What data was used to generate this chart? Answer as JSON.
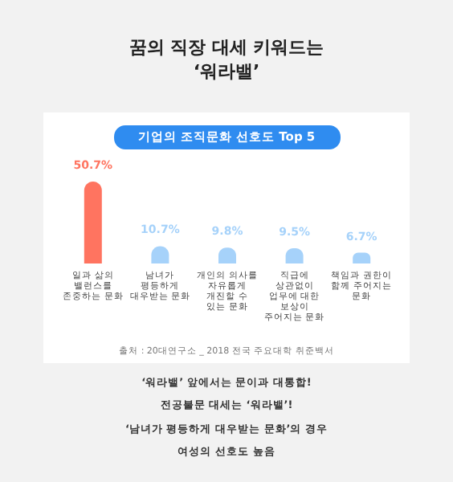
{
  "chart_data": {
    "type": "bar",
    "title": "꿈의 직장 대세 키워드는\n‘워라밸’",
    "subtitle": "기업의 조직문화 선호도 Top 5",
    "categories": [
      "일과 삶의 밸런스를 존중하는 문화",
      "남녀가 평등하게 대우받는 문화",
      "개인의 의사를 자유롭게 개진할 수 있는 문화",
      "직급에 상관없이 업무에 대한 보상이 주어지는 문화",
      "책임과 권한이 함께 주어지는 문화"
    ],
    "values": [
      50.7,
      10.7,
      9.8,
      9.5,
      6.7
    ],
    "colors": [
      "#ff7460",
      "#a6d2fa",
      "#a6d2fa",
      "#a6d2fa",
      "#a6d2fa"
    ],
    "value_labels": [
      "50.7%",
      "10.7%",
      "9.8%",
      "9.5%",
      "6.7%"
    ],
    "annotations": [
      "출처 : 20대연구소 _ 2018 전국 주요대학 취준백서",
      "‘워라밸’ 앞에서는 문이과 대통합!",
      "전공불문 대세는 ‘워라밸’!",
      "‘남녀가 평등하게 대우받는 문화’의 경우",
      "여성의 선호도 높음"
    ]
  }
}
